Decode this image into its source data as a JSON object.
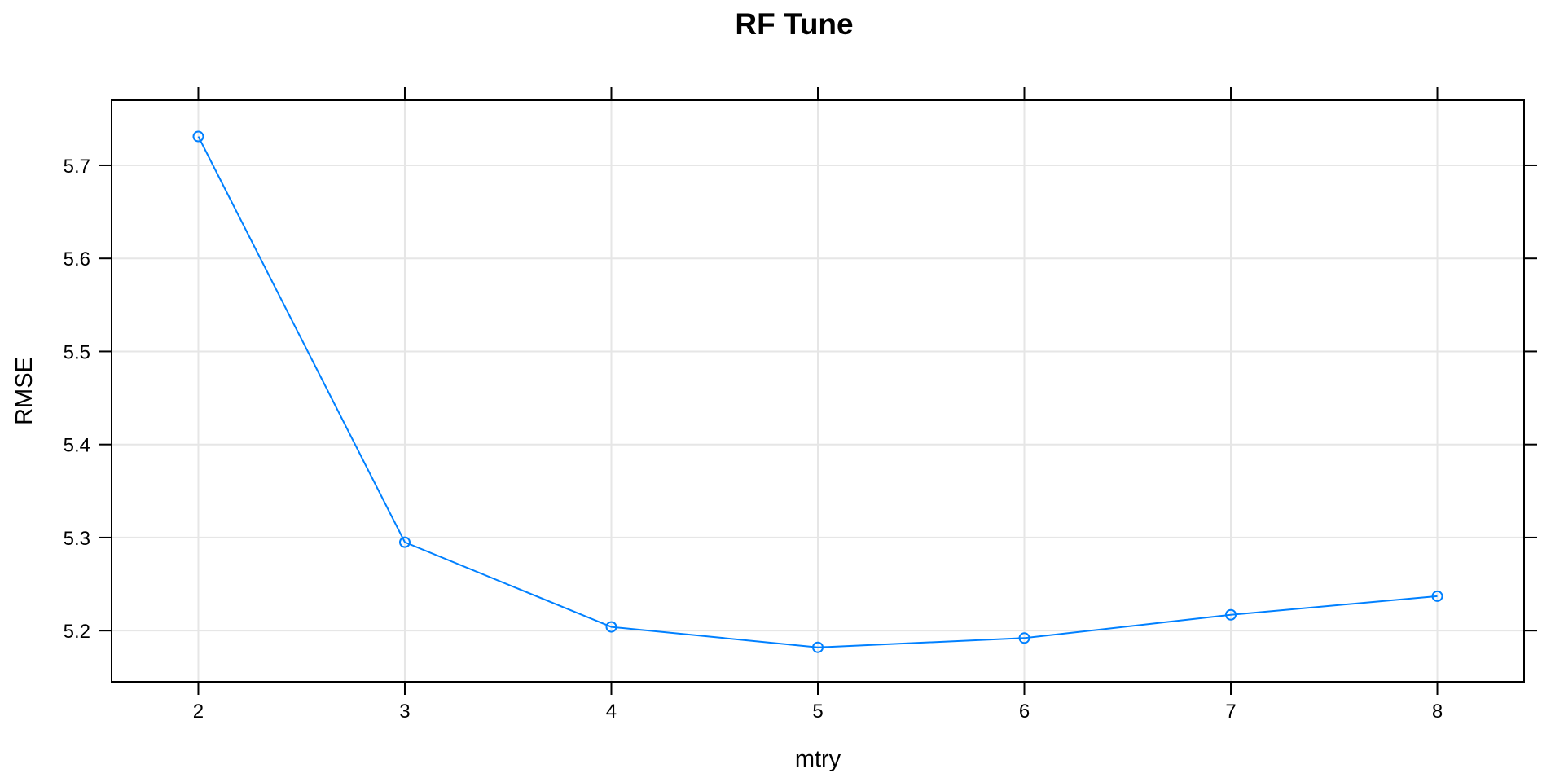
{
  "chart_data": {
    "type": "line",
    "title": "RF Tune",
    "xlabel": "mtry",
    "ylabel": "RMSE",
    "x": [
      2,
      3,
      4,
      5,
      6,
      7,
      8
    ],
    "series": [
      {
        "values": [
          5.731,
          5.295,
          5.204,
          5.182,
          5.192,
          5.217,
          5.237
        ]
      }
    ],
    "xlim": [
      1.58,
      8.42
    ],
    "ylim": [
      5.145,
      5.77
    ],
    "x_ticks": [
      2,
      3,
      4,
      5,
      6,
      7,
      8
    ],
    "y_ticks": [
      5.2,
      5.3,
      5.4,
      5.5,
      5.6,
      5.7
    ],
    "y_tick_labels": [
      "5.2",
      "5.3",
      "5.4",
      "5.5",
      "5.6",
      "5.7"
    ],
    "grid": true,
    "legend": "none",
    "colors": {
      "series": "#0080ff",
      "grid": "#e6e6e6",
      "axis": "#000000"
    }
  }
}
